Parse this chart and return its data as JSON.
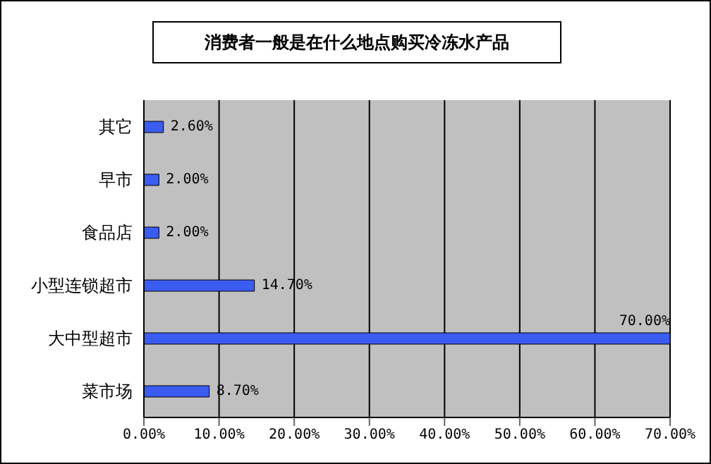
{
  "chart_data": {
    "type": "bar",
    "orientation": "horizontal",
    "title": "消费者一般是在什么地点购买冷冻水产品",
    "categories": [
      "其它",
      "早市",
      "食品店",
      "小型连锁超市",
      "大中型超市",
      "菜市场"
    ],
    "values": [
      2.6,
      2,
      2,
      14.7,
      70,
      8.7
    ],
    "value_labels": [
      "2.60%",
      "2.00%",
      "2.00%",
      "14.70%",
      "70.00%",
      "8.70%"
    ],
    "color": "#3a5cf0",
    "xlim": [
      0,
      70
    ],
    "xticks": [
      {
        "value": 0,
        "label": "0.00%"
      },
      {
        "value": 10,
        "label": "10.00%"
      },
      {
        "value": 20,
        "label": "20.00%"
      },
      {
        "value": 30,
        "label": "30.00%"
      },
      {
        "value": 40,
        "label": "40.00%"
      },
      {
        "value": 50,
        "label": "50.00%"
      },
      {
        "value": 60,
        "label": "60.00%"
      },
      {
        "value": 70,
        "label": "70.00%"
      }
    ],
    "grid": "x"
  }
}
